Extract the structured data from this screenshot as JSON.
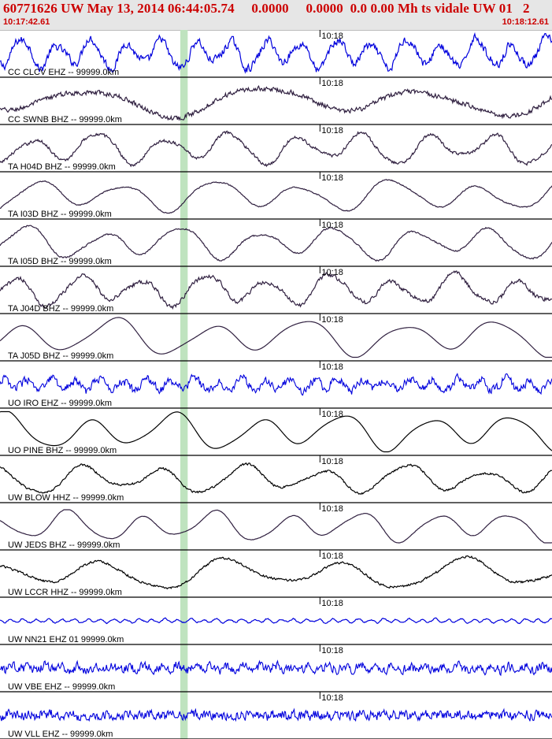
{
  "header": {
    "title": "60771626 UW May 13, 2014 06:44:05.74     0.0000     0.0000  0.0 0.00 Mh ts vidale UW 01   2",
    "start_time": "10:17:42.61",
    "end_time": "10:18:12.61"
  },
  "colors": {
    "header_text": "#cc0000",
    "pick_band": "#bfe3bf",
    "divider": "#000000"
  },
  "chart_data": {
    "type": "line",
    "title": "60771626 UW May 13, 2014 06:44:05.74     0.0000     0.0000  0.0 0.00 Mh ts vidale UW 01   2",
    "xlabel": "",
    "ylabel": "",
    "x_range_seconds": [
      0,
      30
    ],
    "x_start_label": "10:17:42.61",
    "x_end_label": "10:18:12.61",
    "tick_mark": {
      "label": "10:18",
      "t_seconds": 17.39
    },
    "pick_band_seconds": [
      9.8,
      10.2
    ],
    "series": [
      {
        "name": "CC CLCV EHZ -- 99999.0km",
        "color": "#0000dd",
        "period_s": 1.9,
        "noise": 0.18,
        "amplitude": 0.85
      },
      {
        "name": "CC SWNB BHZ -- 99999.0km",
        "color": "#302040",
        "period_s": 9.0,
        "noise": 0.12,
        "amplitude": 0.8
      },
      {
        "name": "TA H04D BHZ -- 99999.0km",
        "color": "#302040",
        "period_s": 3.6,
        "noise": 0.08,
        "amplitude": 0.8
      },
      {
        "name": "TA I03D BHZ -- 99999.0km",
        "color": "#302040",
        "period_s": 4.8,
        "noise": 0.03,
        "amplitude": 0.75
      },
      {
        "name": "TA I05D BHZ -- 99999.0km",
        "color": "#302040",
        "period_s": 4.2,
        "noise": 0.04,
        "amplitude": 0.78
      },
      {
        "name": "TA J04D BHZ -- 99999.0km",
        "color": "#302040",
        "period_s": 3.4,
        "noise": 0.1,
        "amplitude": 0.8
      },
      {
        "name": "TA J05D BHZ -- 99999.0km",
        "color": "#302040",
        "period_s": 5.2,
        "noise": 0.0,
        "amplitude": 0.85
      },
      {
        "name": "UO IRO EHZ -- 99999.0km",
        "color": "#0000dd",
        "period_s": 1.3,
        "noise": 0.35,
        "amplitude": 0.45
      },
      {
        "name": "UO PINE BHZ -- 99999.0km",
        "color": "#000000",
        "period_s": 4.6,
        "noise": 0.0,
        "amplitude": 0.85
      },
      {
        "name": "UW BLOW HHZ -- 99999.0km",
        "color": "#000000",
        "period_s": 4.4,
        "noise": 0.06,
        "amplitude": 0.7
      },
      {
        "name": "UW JEDS BHZ -- 99999.0km",
        "color": "#302040",
        "period_s": 4.0,
        "noise": 0.01,
        "amplitude": 0.7
      },
      {
        "name": "UW LCCR HHZ -- 99999.0km",
        "color": "#000000",
        "period_s": 6.5,
        "noise": 0.06,
        "amplitude": 0.75
      },
      {
        "name": "UW NN21 EHZ 01 99999.0km",
        "color": "#0000dd",
        "period_s": 0.7,
        "noise": 0.18,
        "amplitude": 0.12
      },
      {
        "name": "UW VBE EHZ -- 99999.0km",
        "color": "#0000dd",
        "period_s": 0.9,
        "noise": 0.6,
        "amplitude": 0.3
      },
      {
        "name": "UW VLL EHZ -- 99999.0km",
        "color": "#0000dd",
        "period_s": 0.6,
        "noise": 0.75,
        "amplitude": 0.25
      }
    ]
  }
}
